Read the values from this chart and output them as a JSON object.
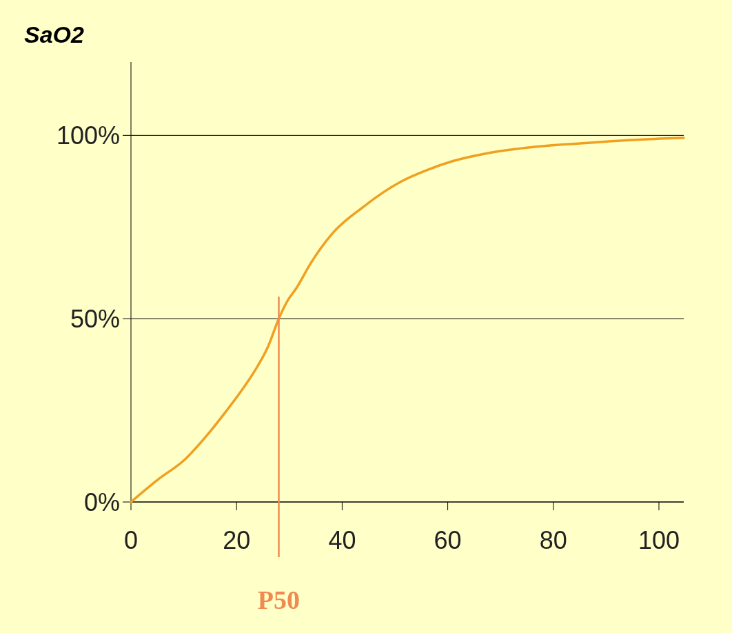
{
  "chart_data": {
    "type": "line",
    "ylabel": "SaO2",
    "x": [
      0,
      5,
      10.3,
      14,
      18,
      21,
      23.5,
      26,
      28,
      29.5,
      31.4,
      34,
      38,
      44,
      51.3,
      56,
      61,
      67,
      73,
      79,
      85,
      91,
      97,
      104.7
    ],
    "series": [
      {
        "color": "#f0a020",
        "values": [
          0,
          6,
          11.7,
          17.5,
          24.7,
          30.5,
          35.9,
          42.5,
          50,
          54.5,
          58.5,
          65,
          73,
          80.5,
          87.5,
          90.5,
          93,
          95,
          96.3,
          97.2,
          97.8,
          98.4,
          98.9,
          99.3
        ]
      }
    ],
    "xlim": [
      0,
      104.7
    ],
    "xticks": [
      0,
      20,
      40,
      60,
      80,
      100
    ],
    "ylim": [
      0,
      120
    ],
    "yticks": [
      {
        "value": 0,
        "label": "0%"
      },
      {
        "value": 50,
        "label": "50%"
      },
      {
        "value": 100,
        "label": "100%"
      }
    ],
    "grid": "y",
    "marker": "none",
    "line_style": "solid",
    "ref_lines": [
      {
        "axis": "x",
        "value": 28,
        "label": "P50",
        "color": "#f08a50"
      }
    ]
  }
}
